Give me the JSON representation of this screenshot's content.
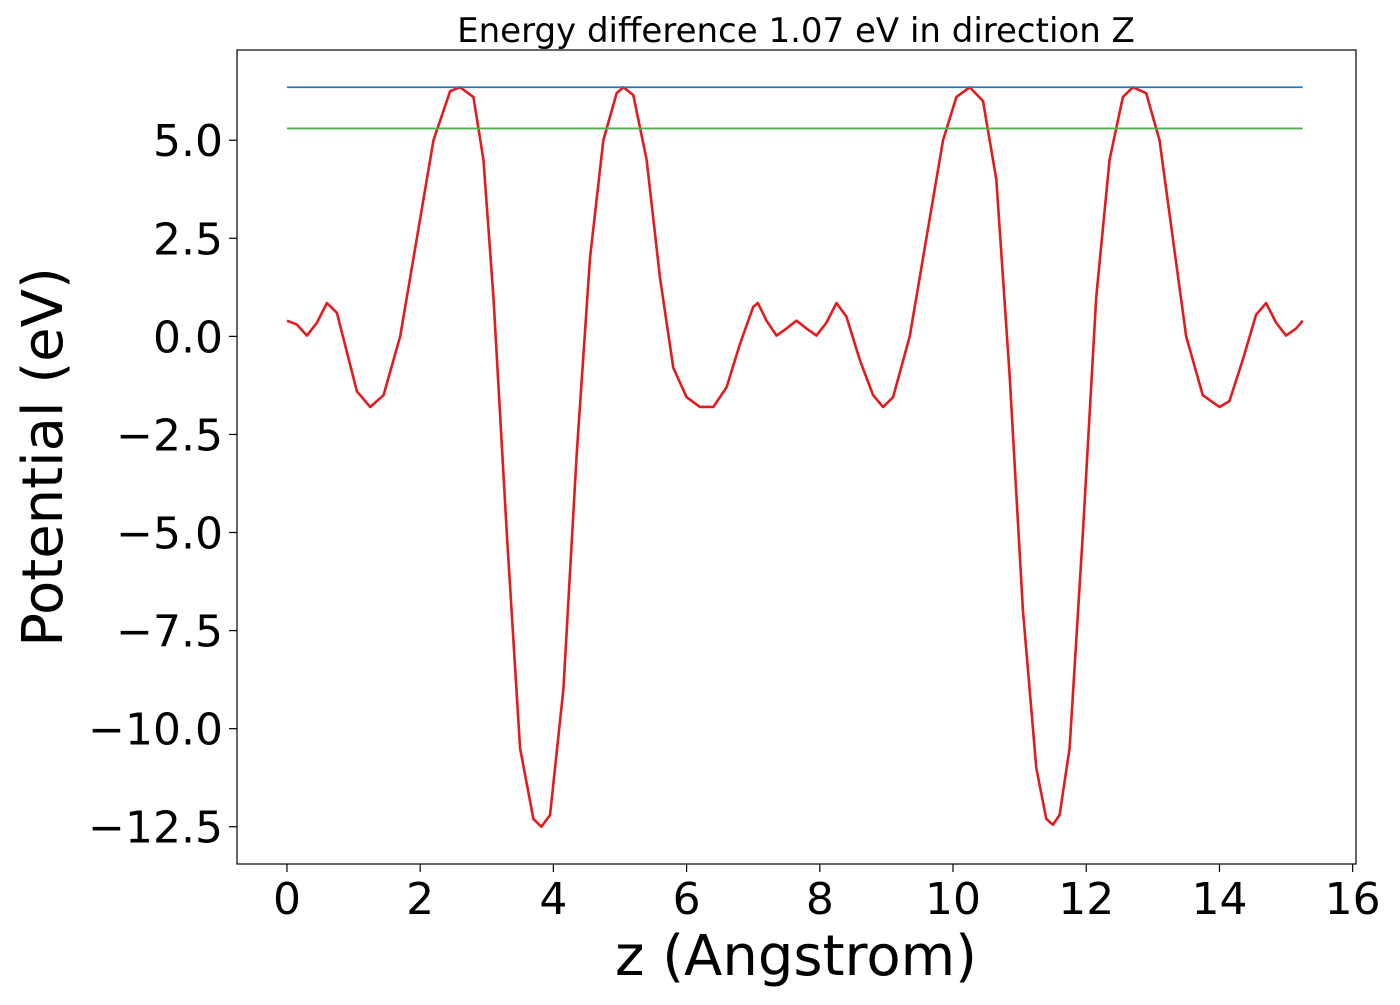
{
  "chart_data": {
    "type": "line",
    "title": "Energy difference 1.07 eV in direction Z",
    "xlabel": "z (Angstrom)",
    "ylabel": "Potential (eV)",
    "xlim": [
      -0.75,
      16.05
    ],
    "ylim": [
      -13.45,
      7.3
    ],
    "xticks": [
      0,
      2,
      4,
      6,
      8,
      10,
      12,
      14,
      16
    ],
    "yticks": [
      5.0,
      2.5,
      0.0,
      -2.5,
      -5.0,
      -7.5,
      -10.0,
      -12.5
    ],
    "xtick_labels": [
      "0",
      "2",
      "4",
      "6",
      "8",
      "10",
      "12",
      "14",
      "16"
    ],
    "ytick_labels": [
      "5.0",
      "2.5",
      "0.0",
      "−2.5",
      "−5.0",
      "−7.5",
      "−10.0",
      "−12.5"
    ],
    "grid": false,
    "legend": "none",
    "series": [
      {
        "color": "#e41a1c",
        "x": [
          0,
          0.15,
          0.3,
          0.45,
          0.6,
          0.75,
          0.9,
          1.05,
          1.25,
          1.45,
          1.7,
          1.95,
          2.2,
          2.45,
          2.6,
          2.8,
          2.95,
          3.1,
          3.3,
          3.5,
          3.7,
          3.82,
          3.95,
          4.15,
          4.35,
          4.55,
          4.75,
          4.95,
          5.05,
          5.2,
          5.4,
          5.6,
          5.8,
          6.0,
          6.2,
          6.4,
          6.6,
          6.8,
          7.0,
          7.07,
          7.2,
          7.35,
          7.5,
          7.65,
          7.8,
          7.95,
          8.1,
          8.25,
          8.4,
          8.6,
          8.8,
          8.95,
          9.1,
          9.35,
          9.6,
          9.85,
          10.05,
          10.25,
          10.45,
          10.65,
          10.85,
          11.05,
          11.25,
          11.4,
          11.5,
          11.6,
          11.75,
          11.95,
          12.15,
          12.35,
          12.55,
          12.7,
          12.9,
          13.1,
          13.3,
          13.5,
          13.75,
          14.0,
          14.15,
          14.35,
          14.55,
          14.7,
          14.85,
          15.0,
          15.15,
          15.25
        ],
        "y": [
          0.4,
          0.3,
          0.02,
          0.35,
          0.85,
          0.6,
          -0.4,
          -1.4,
          -1.8,
          -1.5,
          0.0,
          2.5,
          5.0,
          6.25,
          6.35,
          6.1,
          4.5,
          1.0,
          -5.0,
          -10.5,
          -12.3,
          -12.5,
          -12.2,
          -9.0,
          -3.0,
          2.0,
          5.0,
          6.2,
          6.35,
          6.15,
          4.5,
          1.5,
          -0.8,
          -1.55,
          -1.8,
          -1.8,
          -1.3,
          -0.2,
          0.75,
          0.85,
          0.4,
          0.02,
          0.2,
          0.4,
          0.2,
          0.02,
          0.35,
          0.85,
          0.5,
          -0.6,
          -1.5,
          -1.8,
          -1.55,
          0.0,
          2.5,
          5.0,
          6.1,
          6.35,
          6.0,
          4.0,
          -1.0,
          -7.0,
          -11.0,
          -12.3,
          -12.45,
          -12.2,
          -10.5,
          -5.0,
          1.0,
          4.5,
          6.1,
          6.35,
          6.2,
          5.0,
          2.5,
          0.0,
          -1.5,
          -1.8,
          -1.65,
          -0.6,
          0.55,
          0.85,
          0.35,
          0.02,
          0.2,
          0.4
        ]
      },
      {
        "color": "#1f77b4",
        "x": [
          0,
          15.25
        ],
        "y": [
          6.35,
          6.35
        ]
      },
      {
        "color": "#4daf4a",
        "x": [
          0,
          15.25
        ],
        "y": [
          5.3,
          5.3
        ]
      }
    ]
  }
}
